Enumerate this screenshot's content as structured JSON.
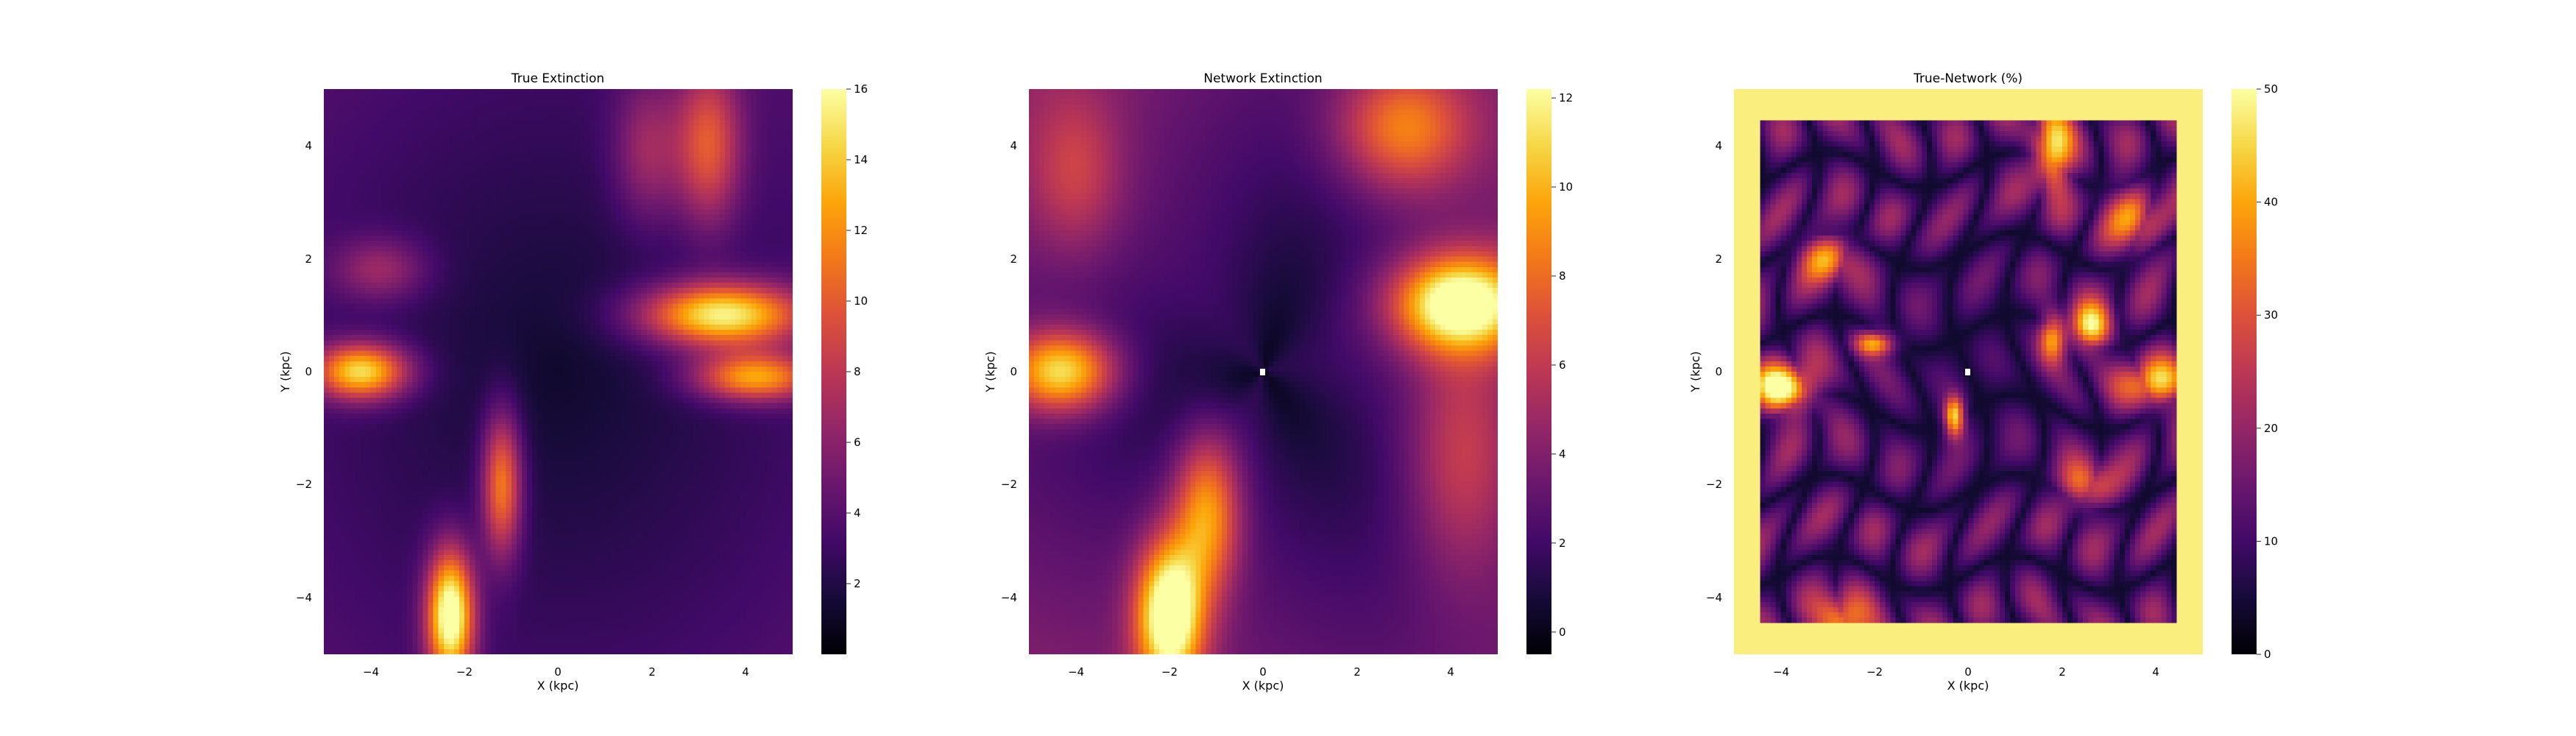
{
  "chart_data": [
    {
      "type": "heatmap",
      "title": "True Extinction",
      "xlabel": "X (kpc)",
      "ylabel": "Y (kpc)",
      "xlim": [
        -5,
        5
      ],
      "ylim": [
        -5,
        5
      ],
      "xticks": [
        "−4",
        "−2",
        "0",
        "2",
        "4"
      ],
      "yticks": [
        "−4",
        "−2",
        "0",
        "2",
        "4"
      ],
      "colormap": "inferno",
      "colorbar": {
        "min": 0,
        "max": 16,
        "ticks": [
          "2",
          "4",
          "6",
          "8",
          "10",
          "12",
          "14",
          "16"
        ]
      },
      "features": [
        {
          "x": -4.2,
          "y": 0.0,
          "amplitude": 12,
          "spread_x": 0.7,
          "spread_y": 0.35
        },
        {
          "x": 3.5,
          "y": 1.0,
          "amplitude": 13,
          "spread_x": 1.2,
          "spread_y": 0.4
        },
        {
          "x": 4.2,
          "y": -0.1,
          "amplitude": 10,
          "spread_x": 0.9,
          "spread_y": 0.3
        },
        {
          "x": -2.3,
          "y": -4.3,
          "amplitude": 15,
          "spread_x": 0.35,
          "spread_y": 0.8
        },
        {
          "x": -1.2,
          "y": -2.0,
          "amplitude": 9,
          "spread_x": 0.3,
          "spread_y": 0.9
        },
        {
          "x": 3.2,
          "y": 4.0,
          "amplitude": 7,
          "spread_x": 0.5,
          "spread_y": 1.0
        },
        {
          "x": 1.9,
          "y": 3.9,
          "amplitude": 4,
          "spread_x": 0.5,
          "spread_y": 0.9
        },
        {
          "x": -3.8,
          "y": 1.8,
          "amplitude": 4,
          "spread_x": 0.7,
          "spread_y": 0.4
        }
      ]
    },
    {
      "type": "heatmap",
      "title": "Network Extinction",
      "xlabel": "X (kpc)",
      "ylabel": "Y (kpc)",
      "xlim": [
        -5,
        5
      ],
      "ylim": [
        -5,
        5
      ],
      "xticks": [
        "−4",
        "−2",
        "0",
        "2",
        "4"
      ],
      "yticks": [
        "−4",
        "−2",
        "0",
        "2",
        "4"
      ],
      "colormap": "inferno",
      "colorbar": {
        "min": -0.5,
        "max": 12.2,
        "ticks": [
          "0",
          "2",
          "4",
          "6",
          "8",
          "10",
          "12"
        ]
      },
      "features": [
        {
          "x": -4.3,
          "y": 0.0,
          "amplitude": 9,
          "spread_x": 0.8,
          "spread_y": 0.5
        },
        {
          "x": 4.2,
          "y": 1.2,
          "amplitude": 11,
          "spread_x": 1.0,
          "spread_y": 0.6
        },
        {
          "x": -2.0,
          "y": -4.3,
          "amplitude": 11.5,
          "spread_x": 0.5,
          "spread_y": 0.9
        },
        {
          "x": -1.2,
          "y": -2.5,
          "amplitude": 7,
          "spread_x": 0.5,
          "spread_y": 1.0
        },
        {
          "x": 3.0,
          "y": 4.3,
          "amplitude": 6,
          "spread_x": 1.0,
          "spread_y": 0.8
        },
        {
          "x": 4.2,
          "y": -1.5,
          "amplitude": 3.5,
          "spread_x": 0.8,
          "spread_y": 1.5
        },
        {
          "x": -4.0,
          "y": 3.5,
          "amplitude": 3,
          "spread_x": 0.7,
          "spread_y": 1.0
        }
      ]
    },
    {
      "type": "heatmap",
      "title": "True-Network (%)",
      "xlabel": "X (kpc)",
      "ylabel": "Y (kpc)",
      "xlim": [
        -5,
        5
      ],
      "ylim": [
        -5,
        5
      ],
      "xticks": [
        "−4",
        "−2",
        "0",
        "2",
        "4"
      ],
      "yticks": [
        "−4",
        "−2",
        "0",
        "2",
        "4"
      ],
      "colormap": "inferno",
      "colorbar": {
        "min": 0,
        "max": 50,
        "ticks": [
          "0",
          "10",
          "20",
          "30",
          "40",
          "50"
        ]
      },
      "features": [
        {
          "x": -4.0,
          "y": -0.3,
          "amplitude": 40,
          "spread_x": 0.5,
          "spread_y": 0.3
        },
        {
          "x": 4.0,
          "y": -0.2,
          "amplitude": 30,
          "spread_x": 0.5,
          "spread_y": 0.3
        },
        {
          "x": 1.8,
          "y": 3.9,
          "amplitude": 35,
          "spread_x": 0.3,
          "spread_y": 0.5
        },
        {
          "x": 2.6,
          "y": 0.8,
          "amplitude": 35,
          "spread_x": 0.3,
          "spread_y": 0.3
        },
        {
          "x": -0.3,
          "y": -0.8,
          "amplitude": 40,
          "spread_x": 0.15,
          "spread_y": 0.25
        },
        {
          "x": -2.0,
          "y": 0.5,
          "amplitude": 30,
          "spread_x": 0.3,
          "spread_y": 0.15
        },
        {
          "x": 1.8,
          "y": 0.6,
          "amplitude": 30,
          "spread_x": 0.2,
          "spread_y": 0.3
        },
        {
          "x": -3.0,
          "y": 2.0,
          "amplitude": 25,
          "spread_x": 0.4,
          "spread_y": 0.3
        },
        {
          "x": 2.5,
          "y": -2.0,
          "amplitude": 22,
          "spread_x": 0.4,
          "spread_y": 0.3
        },
        {
          "x": -2.7,
          "y": -4.5,
          "amplitude": 28,
          "spread_x": 0.4,
          "spread_y": 0.4
        },
        {
          "x": 3.5,
          "y": 2.7,
          "amplitude": 22,
          "spread_x": 0.4,
          "spread_y": 0.4
        }
      ]
    }
  ]
}
